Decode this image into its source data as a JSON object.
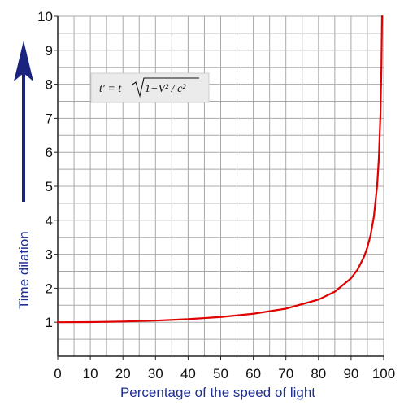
{
  "chart_data": {
    "type": "line",
    "title": "",
    "xlabel": "Percentage of the speed of light",
    "ylabel": "Time dilation",
    "xlim": [
      0,
      100
    ],
    "ylim": [
      0,
      10
    ],
    "xticks": [
      "0",
      "10",
      "20",
      "30",
      "40",
      "50",
      "60",
      "70",
      "80",
      "90",
      "100"
    ],
    "yticks": [
      "1",
      "2",
      "3",
      "4",
      "5",
      "6",
      "7",
      "8",
      "9",
      "10"
    ],
    "grid": true,
    "annotation": {
      "formula_prefix": "t′ = t",
      "formula_radicand": "1−V² / c²"
    },
    "series": [
      {
        "color": "#e00000",
        "x": [
          0,
          10,
          20,
          30,
          40,
          50,
          60,
          70,
          80,
          85,
          90,
          92,
          94,
          95,
          96,
          97,
          98,
          98.5,
          99,
          99.3,
          99.5
        ],
        "y": [
          1.0,
          1.005,
          1.021,
          1.048,
          1.091,
          1.155,
          1.25,
          1.4,
          1.667,
          1.898,
          2.294,
          2.552,
          2.931,
          3.203,
          3.571,
          4.113,
          5.025,
          5.795,
          7.089,
          8.46,
          10.0
        ]
      }
    ]
  }
}
